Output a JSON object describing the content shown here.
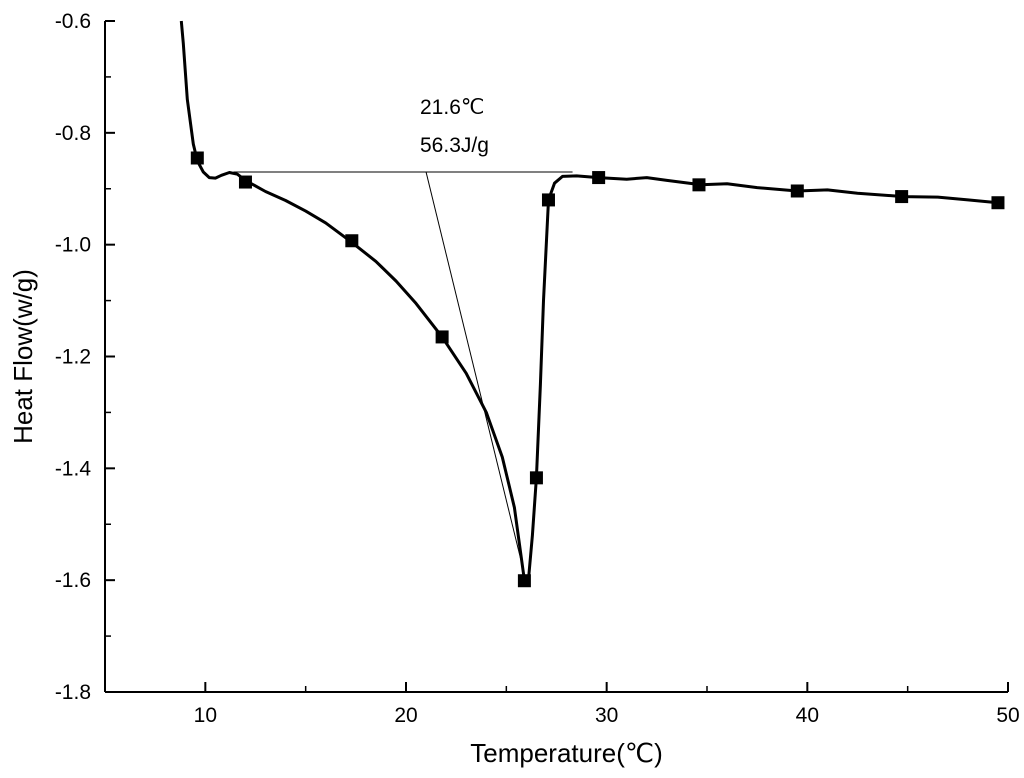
{
  "chart_data": {
    "type": "line",
    "xlabel": "Temperature(℃)",
    "ylabel": "Heat Flow(w/g)",
    "xlim": [
      5,
      50
    ],
    "ylim": [
      -1.8,
      -0.6
    ],
    "x_ticks": [
      10,
      20,
      30,
      40,
      50
    ],
    "x_tick_labels": [
      "10",
      "20",
      "30",
      "40",
      "50"
    ],
    "y_ticks": [
      -1.8,
      -1.6,
      -1.4,
      -1.2,
      -1.0,
      -0.8,
      -0.6
    ],
    "y_tick_labels": [
      "-1.8",
      "-1.6",
      "-1.4",
      "-1.2",
      "-1.0",
      "-0.8",
      "-0.6"
    ],
    "grid": false,
    "legend": "none",
    "series": [
      {
        "line_color": "#000000",
        "marker": "square",
        "curve": [
          [
            8.8,
            -0.6
          ],
          [
            8.9,
            -0.64
          ],
          [
            9.0,
            -0.69
          ],
          [
            9.1,
            -0.74
          ],
          [
            9.25,
            -0.78
          ],
          [
            9.4,
            -0.82
          ],
          [
            9.6,
            -0.85
          ],
          [
            9.9,
            -0.87
          ],
          [
            10.2,
            -0.88
          ],
          [
            10.5,
            -0.881
          ],
          [
            10.8,
            -0.876
          ],
          [
            11.2,
            -0.871
          ],
          [
            11.6,
            -0.874
          ],
          [
            12.0,
            -0.885
          ],
          [
            13.0,
            -0.905
          ],
          [
            14.0,
            -0.921
          ],
          [
            15.0,
            -0.94
          ],
          [
            16.0,
            -0.961
          ],
          [
            17.2,
            -0.993
          ],
          [
            18.5,
            -1.03
          ],
          [
            19.5,
            -1.065
          ],
          [
            20.5,
            -1.105
          ],
          [
            21.8,
            -1.165
          ],
          [
            23.0,
            -1.23
          ],
          [
            24.0,
            -1.3
          ],
          [
            24.8,
            -1.38
          ],
          [
            25.4,
            -1.47
          ],
          [
            25.9,
            -1.6
          ],
          [
            26.1,
            -1.6
          ],
          [
            26.3,
            -1.52
          ],
          [
            26.5,
            -1.417
          ],
          [
            26.7,
            -1.25
          ],
          [
            26.85,
            -1.1
          ],
          [
            27.1,
            -0.92
          ],
          [
            27.4,
            -0.89
          ],
          [
            27.8,
            -0.878
          ],
          [
            28.5,
            -0.877
          ],
          [
            29.6,
            -0.88
          ],
          [
            31.0,
            -0.883
          ],
          [
            32.0,
            -0.88
          ],
          [
            33.0,
            -0.885
          ],
          [
            34.7,
            -0.893
          ],
          [
            36.0,
            -0.891
          ],
          [
            37.5,
            -0.898
          ],
          [
            39.5,
            -0.904
          ],
          [
            41.0,
            -0.902
          ],
          [
            42.5,
            -0.908
          ],
          [
            44.8,
            -0.914
          ],
          [
            46.5,
            -0.915
          ],
          [
            48.0,
            -0.92
          ],
          [
            49.5,
            -0.925
          ]
        ],
        "markers": [
          [
            9.6,
            -0.845
          ],
          [
            12.0,
            -0.888
          ],
          [
            17.3,
            -0.993
          ],
          [
            21.8,
            -1.165
          ],
          [
            25.9,
            -1.601
          ],
          [
            26.5,
            -1.417
          ],
          [
            27.1,
            -0.92
          ],
          [
            29.6,
            -0.88
          ],
          [
            34.6,
            -0.893
          ],
          [
            39.5,
            -0.904
          ],
          [
            44.7,
            -0.914
          ],
          [
            49.5,
            -0.925
          ]
        ]
      }
    ],
    "annotations": {
      "peak_temperature": "21.6℃",
      "enthalpy": "56.3J/g",
      "baseline": [
        [
          11.4,
          -0.87
        ],
        [
          28.3,
          -0.87
        ]
      ],
      "onset_tangent": [
        [
          21.0,
          -0.87
        ],
        [
          25.7,
          -1.56
        ]
      ]
    }
  }
}
